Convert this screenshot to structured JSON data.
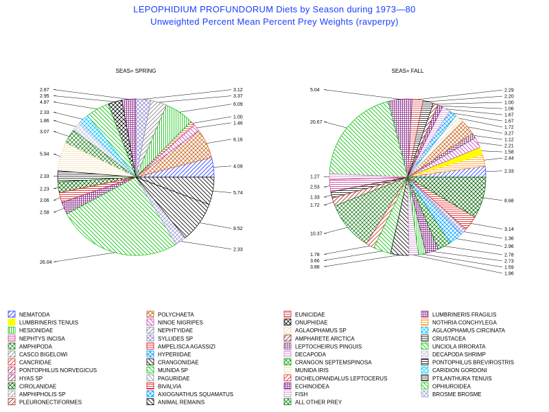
{
  "title": "LEPOPHIDIUM PROFUNDORUM Diets by Season during 1973—80",
  "subtitle": "Unweighted Percent Mean Percent Prey  Weights (ravperpy)",
  "categories": [
    {
      "name": "NEMATODA",
      "color": "#1f35ff",
      "pattern": "diag-fwd"
    },
    {
      "name": "POLYCHAETA",
      "color": "#c8641e",
      "pattern": "crosshatch"
    },
    {
      "name": "EUNICIDAE",
      "color": "#d02a2a",
      "pattern": "hlines"
    },
    {
      "name": "LUMBRINERIS FRAGILIS",
      "color": "#8a2a8a",
      "pattern": "grid"
    },
    {
      "name": "LUMBRINERIS TENUIS",
      "color": "#ffff00",
      "pattern": "solid"
    },
    {
      "name": "NINOE NIGRIPES",
      "color": "#c03cc0",
      "pattern": "diag-back"
    },
    {
      "name": "ONUPHIDAE",
      "color": "#000000",
      "pattern": "crosshatch"
    },
    {
      "name": "NOTHRIA CONCHYLEGA",
      "color": "#ff8c00",
      "pattern": "hlines"
    },
    {
      "name": "HESIONIDAE",
      "color": "#00c000",
      "pattern": "vlines"
    },
    {
      "name": "NEPHTYIDAE",
      "color": "#808080",
      "pattern": "diag-fwd"
    },
    {
      "name": "AGLAOPHAMUS SP",
      "color": "#e8d8a0",
      "pattern": "diag-fwd"
    },
    {
      "name": "AGLAOPHAMUS CIRCINATA",
      "color": "#00c0ff",
      "pattern": "crosshatch"
    },
    {
      "name": "NEPHTYS INCISA",
      "color": "#d02a8a",
      "pattern": "hlines"
    },
    {
      "name": "SYLLIDES SP",
      "color": "#8888cc",
      "pattern": "crosshatch"
    },
    {
      "name": "AMPHARETE ARCTICA",
      "color": "#8a2a2a",
      "pattern": "diag-fwd"
    },
    {
      "name": "CRUSTACEA",
      "color": "#000000",
      "pattern": "hlines"
    },
    {
      "name": "AMPHIPODA",
      "color": "#208020",
      "pattern": "crosshatch"
    },
    {
      "name": "AMPELISCA AGASSIZI",
      "color": "#e00000",
      "pattern": "hlines"
    },
    {
      "name": "LEPTOCHEIRUS PINGUIS",
      "color": "#804080",
      "pattern": "grid"
    },
    {
      "name": "UNCIOLA IRRORATA",
      "color": "#00c000",
      "pattern": "diag-back"
    },
    {
      "name": "CASCO BIGELOWI",
      "color": "#808080",
      "pattern": "diag-fwd"
    },
    {
      "name": "HYPERIIDAE",
      "color": "#0090ff",
      "pattern": "crosshatch"
    },
    {
      "name": "DECAPODA",
      "color": "#d080d0",
      "pattern": "hlines"
    },
    {
      "name": "DECAPODA SHRIMP",
      "color": "#c0c0e0",
      "pattern": "crosshatch"
    },
    {
      "name": "CANCRIDAE",
      "color": "#d02a2a",
      "pattern": "diag-fwd"
    },
    {
      "name": "CRANGONIDAE",
      "color": "#000000",
      "pattern": "diag-back"
    },
    {
      "name": "CRANGON SEPTEMSPINOSA",
      "color": "#00a000",
      "pattern": "crosshatch"
    },
    {
      "name": "PONTOPHILUS BREVIROSTRIS",
      "color": "#000000",
      "pattern": "hlines"
    },
    {
      "name": "PONTOPHILUS NORVEGICUS",
      "color": "#a02060",
      "pattern": "diag-fwd"
    },
    {
      "name": "MUNIDA SP",
      "color": "#00c000",
      "pattern": "diag-back"
    },
    {
      "name": "MUNIDA IRIS",
      "color": "#f0e0b0",
      "pattern": "hlines"
    },
    {
      "name": "CARIDION GORDONI",
      "color": "#00d0ff",
      "pattern": "crosshatch"
    },
    {
      "name": "HYAS SP",
      "color": "#8a2a5a",
      "pattern": "diag-fwd"
    },
    {
      "name": "PAGURIDAE",
      "color": "#9090a0",
      "pattern": "diag-back"
    },
    {
      "name": "DICHELOPANDALUS LEPTOCERUS",
      "color": "#d02a2a",
      "pattern": "diag-fwd"
    },
    {
      "name": "PTILANTHURA TENUIS",
      "color": "#000000",
      "pattern": "hlines"
    },
    {
      "name": "CIROLANIDAE",
      "color": "#006000",
      "pattern": "crosshatch"
    },
    {
      "name": "BIVALVIA",
      "color": "#e00000",
      "pattern": "hlines"
    },
    {
      "name": "ECHINOIDEA",
      "color": "#802080",
      "pattern": "grid"
    },
    {
      "name": "OPHIUROIDEA",
      "color": "#00c000",
      "pattern": "diag-back"
    },
    {
      "name": "AMPHIPHOLIS SP",
      "color": "#909090",
      "pattern": "diag-fwd"
    },
    {
      "name": "AXIOGNATHUS SQUAMATUS",
      "color": "#00a0ff",
      "pattern": "crosshatch"
    },
    {
      "name": "FISH",
      "color": "#d090d0",
      "pattern": "hlines"
    },
    {
      "name": "BROSME BROSME",
      "color": "#a0a0d0",
      "pattern": "crosshatch"
    },
    {
      "name": "PLEURONECTIFORMES",
      "color": "#a02020",
      "pattern": "diag-fwd"
    },
    {
      "name": "ANIMAL REMAINS",
      "color": "#000000",
      "pattern": "diag-back"
    },
    {
      "name": "ALL OTHER PREY",
      "color": "#008000",
      "pattern": "crosshatch"
    }
  ],
  "chart_data": [
    {
      "type": "pie",
      "title": "SEAS= SPRING",
      "slices": [
        {
          "category": "NEMATODA",
          "value": 4.09,
          "label": "4.09"
        },
        {
          "category": "POLYCHAETA",
          "value": 6.16,
          "label": "6.16"
        },
        {
          "category": "NINOE NIGRIPES",
          "value": 1.46,
          "label": "1.46"
        },
        {
          "category": "EUNICIDAE",
          "value": 1.0,
          "label": "1.00"
        },
        {
          "category": "HESIONIDAE",
          "value": 6.09,
          "label": "6.09"
        },
        {
          "category": "NEPHTYIDAE",
          "value": 3.37,
          "label": "3.37"
        },
        {
          "category": "SYLLIDES SP",
          "value": 3.12,
          "label": "3.12"
        },
        {
          "category": "LUMBRINERIS FRAGILIS",
          "value": 2.87,
          "label": "2.87"
        },
        {
          "category": "ONUPHIDAE",
          "value": 2.95,
          "label": "2.95"
        },
        {
          "category": "MUNIDA SP",
          "value": 4.87,
          "label": "4.87"
        },
        {
          "category": "AGLAOPHAMUS CIRCINATA",
          "value": 2.33,
          "label": "2.33"
        },
        {
          "category": "DECAPODA SHRIMP",
          "value": 1.86,
          "label": "1.86"
        },
        {
          "category": "AMPHIPODA",
          "value": 3.07,
          "label": "3.07"
        },
        {
          "category": "MUNIDA IRIS",
          "value": 5.94,
          "label": "5.94"
        },
        {
          "category": "CRUSTACEA",
          "value": 2.33,
          "label": "2.33"
        },
        {
          "category": "CIROLANIDAE",
          "value": 2.23,
          "label": "2.23"
        },
        {
          "category": "AMPELISCA AGASSIZI",
          "value": 2.06,
          "label": "2.06"
        },
        {
          "category": "ECHINOIDEA",
          "value": 2.58,
          "label": "2.58"
        },
        {
          "category": "OPHIUROIDEA",
          "value": 26.04,
          "label": "26.04"
        },
        {
          "category": "BROSME BROSME",
          "value": 2.33,
          "label": "2.33"
        },
        {
          "category": "CRANGONIDAE",
          "value": 8.52,
          "label": "8.52"
        },
        {
          "category": "ANIMAL REMAINS",
          "value": 5.74,
          "label": "5.74"
        }
      ]
    },
    {
      "type": "pie",
      "title": "SEAS= FALL",
      "slices": [
        {
          "category": "NEMATODA",
          "value": 2.33,
          "label": "2.33"
        },
        {
          "category": "NOTHRIA CONCHYLEGA",
          "value": 2.44,
          "label": "2.44"
        },
        {
          "category": "LUMBRINERIS TENUIS",
          "value": 1.58,
          "label": "1.58"
        },
        {
          "category": "NINOE NIGRIPES",
          "value": 2.21,
          "label": "2.21"
        },
        {
          "category": "LEPTOCHEIRUS PINGUIS",
          "value": 1.12,
          "label": "1.12"
        },
        {
          "category": "POLYCHAETA",
          "value": 3.27,
          "label": "3.27"
        },
        {
          "category": "AGLAOPHAMUS SP",
          "value": 1.72,
          "label": "1.72"
        },
        {
          "category": "AXIOGNATHUS SQUAMATUS",
          "value": 1.67,
          "label": "1.67"
        },
        {
          "category": "FISH",
          "value": 1.67,
          "label": "1.67"
        },
        {
          "category": "ECHINOIDEA",
          "value": 1.06,
          "label": "1.06"
        },
        {
          "category": "AMPHARETE ARCTICA",
          "value": 1.0,
          "label": "1.00"
        },
        {
          "category": "PONTOPHILUS BREVIROSTRIS",
          "value": 2.2,
          "label": "2.20"
        },
        {
          "category": "EUNICIDAE",
          "value": 2.29,
          "label": "2.29"
        },
        {
          "category": "LUMBRINERIS FRAGILIS",
          "value": 5.04,
          "label": "5.04"
        },
        {
          "category": "UNCIOLA IRRORATA",
          "value": 20.67,
          "label": "20.67"
        },
        {
          "category": "DECAPODA",
          "value": 1.27,
          "label": "1.27"
        },
        {
          "category": "NEPHTYS INCISA",
          "value": 2.53,
          "label": "2.53"
        },
        {
          "category": "CRUSTACEA",
          "value": 1.33,
          "label": "1.33"
        },
        {
          "category": "PLEURONECTIFORMES",
          "value": 1.72,
          "label": "1.72"
        },
        {
          "category": "AMPHIPODA",
          "value": 10.37,
          "label": "10.37"
        },
        {
          "category": "DICHELOPANDALUS LEPTOCERUS",
          "value": 1.78,
          "label": "1.78"
        },
        {
          "category": "MUNIDA SP",
          "value": 3.66,
          "label": "3.66"
        },
        {
          "category": "CRANGONIDAE",
          "value": 3.88,
          "label": "3.88"
        },
        {
          "category": "FISH",
          "value": 1.96,
          "label": "1.96"
        },
        {
          "category": "HESIONIDAE",
          "value": 1.59,
          "label": "1.59"
        },
        {
          "category": "ECHINOIDEA",
          "value": 2.73,
          "label": "2.73"
        },
        {
          "category": "ALL OTHER PREY",
          "value": 2.78,
          "label": "2.78"
        },
        {
          "category": "AXIOGNATHUS SQUAMATUS",
          "value": 2.96,
          "label": "2.96"
        },
        {
          "category": "SYLLIDES SP",
          "value": 1.36,
          "label": "1.36"
        },
        {
          "category": "BIVALVIA",
          "value": 3.14,
          "label": "3.14"
        },
        {
          "category": "CIROLANIDAE",
          "value": 8.68,
          "label": "8.68"
        }
      ]
    }
  ]
}
